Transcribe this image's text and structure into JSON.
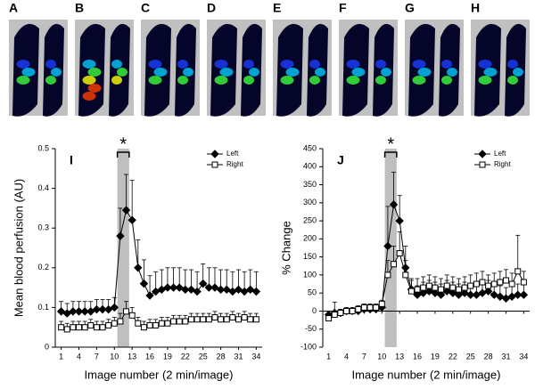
{
  "panels": [
    "A",
    "B",
    "C",
    "D",
    "E",
    "F",
    "G",
    "H"
  ],
  "chart_data": [
    {
      "type": "line",
      "panel": "I",
      "ylabel": "Mean blood perfusion (AU)",
      "xlabel": "Image number (2 min/image)",
      "annotation": "*",
      "highlight_x": [
        10.5,
        12.5
      ],
      "x": [
        1,
        2,
        3,
        4,
        5,
        6,
        7,
        8,
        9,
        10,
        11,
        12,
        13,
        14,
        15,
        16,
        17,
        18,
        19,
        20,
        21,
        22,
        23,
        24,
        25,
        26,
        27,
        28,
        29,
        30,
        31,
        32,
        33,
        34
      ],
      "xlim": [
        0,
        35
      ],
      "xticks": [
        1,
        4,
        7,
        10,
        13,
        16,
        19,
        22,
        25,
        28,
        31,
        34
      ],
      "ylim": [
        0,
        0.5
      ],
      "yticks": [
        0,
        0.1,
        0.2,
        0.3,
        0.4,
        0.5
      ],
      "legend": "upper right",
      "series": [
        {
          "name": "Left",
          "color": "#000000",
          "marker": "diamond",
          "values": [
            0.09,
            0.085,
            0.09,
            0.09,
            0.09,
            0.09,
            0.095,
            0.095,
            0.095,
            0.1,
            0.28,
            0.345,
            0.32,
            0.2,
            0.16,
            0.13,
            0.14,
            0.145,
            0.15,
            0.15,
            0.15,
            0.145,
            0.145,
            0.14,
            0.16,
            0.15,
            0.15,
            0.145,
            0.145,
            0.14,
            0.145,
            0.14,
            0.145,
            0.14
          ],
          "errors": [
            0.025,
            0.025,
            0.025,
            0.025,
            0.025,
            0.025,
            0.025,
            0.025,
            0.025,
            0.025,
            0.07,
            0.09,
            0.1,
            0.07,
            0.06,
            0.05,
            0.05,
            0.05,
            0.05,
            0.05,
            0.05,
            0.05,
            0.05,
            0.05,
            0.05,
            0.05,
            0.05,
            0.05,
            0.05,
            0.05,
            0.05,
            0.05,
            0.05,
            0.05
          ]
        },
        {
          "name": "Right",
          "color": "#000000",
          "marker": "square",
          "values": [
            0.05,
            0.045,
            0.05,
            0.05,
            0.05,
            0.055,
            0.05,
            0.05,
            0.055,
            0.06,
            0.065,
            0.09,
            0.08,
            0.06,
            0.05,
            0.055,
            0.055,
            0.06,
            0.06,
            0.065,
            0.065,
            0.065,
            0.07,
            0.07,
            0.07,
            0.07,
            0.075,
            0.07,
            0.07,
            0.075,
            0.07,
            0.075,
            0.07,
            0.07
          ],
          "errors": [
            0.015,
            0.015,
            0.015,
            0.015,
            0.015,
            0.015,
            0.015,
            0.015,
            0.015,
            0.015,
            0.02,
            0.025,
            0.02,
            0.015,
            0.015,
            0.015,
            0.015,
            0.015,
            0.015,
            0.015,
            0.015,
            0.015,
            0.015,
            0.015,
            0.015,
            0.015,
            0.015,
            0.015,
            0.015,
            0.015,
            0.015,
            0.015,
            0.015,
            0.015
          ]
        }
      ]
    },
    {
      "type": "line",
      "panel": "J",
      "ylabel": "% Change",
      "xlabel": "Image number (2 min/image)",
      "annotation": "*",
      "highlight_x": [
        10.5,
        12.5
      ],
      "x": [
        1,
        2,
        3,
        4,
        5,
        6,
        7,
        8,
        9,
        10,
        11,
        12,
        13,
        14,
        15,
        16,
        17,
        18,
        19,
        20,
        21,
        22,
        23,
        24,
        25,
        26,
        27,
        28,
        29,
        30,
        31,
        32,
        33,
        34
      ],
      "xlim": [
        0,
        35
      ],
      "xticks": [
        1,
        4,
        7,
        10,
        13,
        16,
        19,
        22,
        25,
        28,
        31,
        34
      ],
      "ylim": [
        -100,
        450
      ],
      "yticks": [
        -100,
        -50,
        0,
        50,
        100,
        150,
        200,
        250,
        300,
        350,
        400,
        450
      ],
      "legend": "upper right",
      "series": [
        {
          "name": "Left",
          "color": "#000000",
          "marker": "diamond",
          "values": [
            -10,
            -5,
            -5,
            0,
            0,
            0,
            5,
            5,
            5,
            10,
            180,
            295,
            250,
            120,
            60,
            45,
            50,
            55,
            50,
            45,
            55,
            50,
            45,
            50,
            45,
            45,
            50,
            55,
            45,
            40,
            35,
            40,
            45,
            45
          ],
          "errors": [
            10,
            30,
            10,
            5,
            5,
            5,
            5,
            5,
            10,
            15,
            110,
            90,
            70,
            60,
            30,
            25,
            30,
            30,
            30,
            30,
            30,
            30,
            30,
            30,
            30,
            30,
            30,
            30,
            30,
            30,
            30,
            30,
            30,
            30
          ]
        },
        {
          "name": "Right",
          "color": "#000000",
          "marker": "square",
          "values": [
            -20,
            -10,
            -5,
            0,
            0,
            5,
            10,
            10,
            10,
            20,
            100,
            130,
            160,
            100,
            55,
            60,
            65,
            70,
            65,
            60,
            70,
            65,
            60,
            65,
            70,
            75,
            80,
            70,
            75,
            80,
            85,
            75,
            110,
            80
          ],
          "errors": [
            10,
            10,
            10,
            10,
            10,
            10,
            10,
            10,
            10,
            10,
            40,
            50,
            60,
            40,
            30,
            30,
            30,
            30,
            30,
            30,
            30,
            30,
            30,
            30,
            30,
            30,
            30,
            30,
            30,
            30,
            30,
            30,
            100,
            30
          ]
        }
      ]
    }
  ]
}
